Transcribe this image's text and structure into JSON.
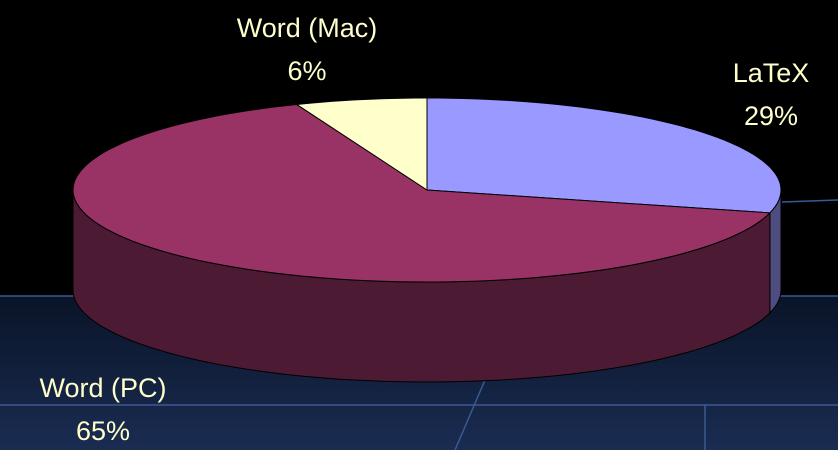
{
  "chart_data": {
    "type": "pie",
    "categories": [
      "LaTeX",
      "Word (PC)",
      "Word (Mac)"
    ],
    "values": [
      29,
      65,
      6
    ],
    "value_labels": [
      "29%",
      "65%",
      "6%"
    ],
    "colors": [
      "#9999ff",
      "#993366",
      "#ffffcc"
    ]
  }
}
